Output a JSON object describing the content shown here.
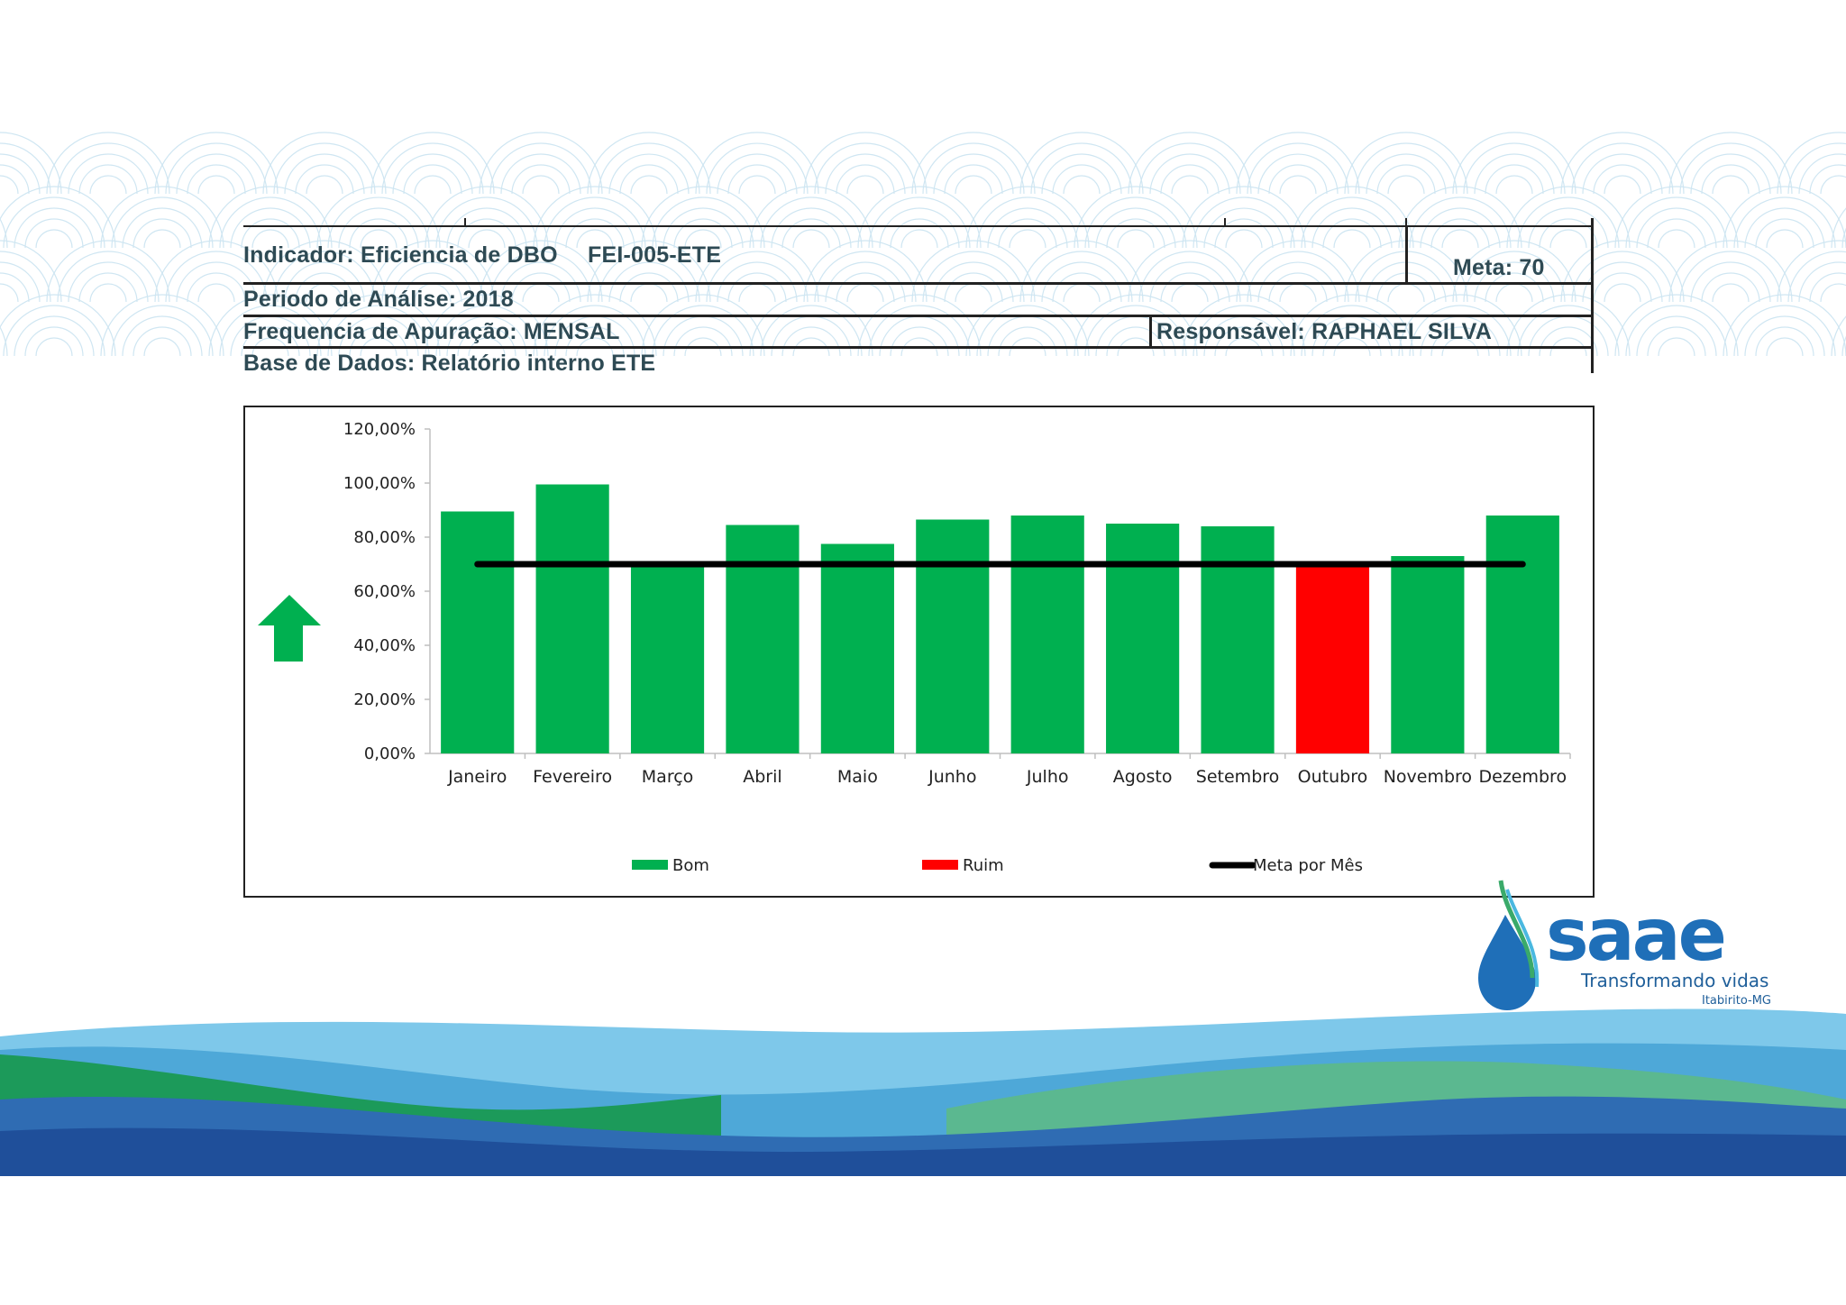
{
  "header": {
    "indicador": "Indicador: Eficiencia de DBO",
    "codigo": "FEI-005-ETE",
    "meta": "Meta: 70",
    "periodo": "Periodo de Análise: 2018",
    "frequencia": "Frequencia de Apuração: MENSAL",
    "responsavel": "Responsável: RAPHAEL SILVA",
    "base": "Base de Dados:  Relatório interno ETE"
  },
  "logo": {
    "name": "saae",
    "tagline": "Transformando vidas",
    "location": "Itabirito-MG"
  },
  "colors": {
    "bom": "#00b050",
    "ruim": "#ff0000",
    "meta": "#000000",
    "header_text": "#2e4a54"
  },
  "chart_data": {
    "type": "bar",
    "categories": [
      "Janeiro",
      "Fevereiro",
      "Março",
      "Abril",
      "Maio",
      "Junho",
      "Julho",
      "Agosto",
      "Setembro",
      "Outubro",
      "Novembro",
      "Dezembro"
    ],
    "series": [
      {
        "name": "Bom",
        "values": [
          89.5,
          99.5,
          70,
          84.5,
          77.5,
          86.5,
          88,
          85,
          84,
          0,
          73,
          88
        ]
      },
      {
        "name": "Ruim",
        "values": [
          0,
          0,
          0,
          0,
          0,
          0,
          0,
          0,
          0,
          69.5,
          0,
          0
        ]
      },
      {
        "name": "Meta por Mês",
        "type": "line",
        "values": [
          70,
          70,
          70,
          70,
          70,
          70,
          70,
          70,
          70,
          70,
          70,
          70
        ]
      }
    ],
    "y_ticks": [
      "0,00%",
      "20,00%",
      "40,00%",
      "60,00%",
      "80,00%",
      "100,00%",
      "120,00%"
    ],
    "ylim": [
      0,
      120
    ],
    "legend": [
      "Bom",
      "Ruim",
      "Meta por Mês"
    ],
    "legend_position": "bottom",
    "title": "",
    "xlabel": "",
    "ylabel": ""
  }
}
